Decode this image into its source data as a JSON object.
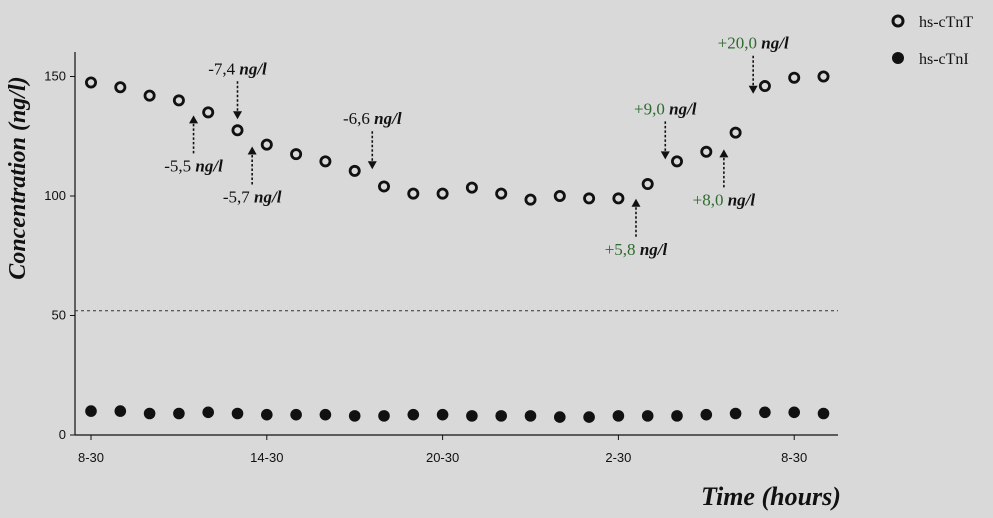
{
  "chart_data": {
    "type": "scatter",
    "xlabel": "Time (hours)",
    "ylabel": "Concentration (ng/l)",
    "ylim": [
      0,
      160
    ],
    "yticks": [
      0,
      50,
      100,
      150
    ],
    "x_tick_labels": [
      {
        "index": 0,
        "label": "8-30"
      },
      {
        "index": 6,
        "label": "14-30"
      },
      {
        "index": 12,
        "label": "20-30"
      },
      {
        "index": 18,
        "label": "2-30"
      },
      {
        "index": 24,
        "label": "8-30"
      }
    ],
    "reference_line": {
      "y": 52,
      "style": "dashed"
    },
    "legend_position": "top-right",
    "series": [
      {
        "name": "hs-cTnT",
        "marker": "open-circle",
        "values": [
          147.5,
          145.5,
          142.0,
          140.0,
          135.0,
          127.5,
          121.5,
          117.5,
          114.5,
          110.5,
          104.0,
          101.0,
          101.0,
          103.5,
          101.0,
          98.5,
          100.0,
          99.0,
          99.0,
          105.0,
          114.5,
          118.5,
          126.5,
          146.0,
          149.5,
          150.0
        ]
      },
      {
        "name": "hs-cTnI",
        "marker": "filled-circle",
        "values": [
          10.0,
          10.0,
          9.0,
          9.0,
          9.5,
          9.0,
          8.5,
          8.5,
          8.5,
          8.0,
          8.0,
          8.5,
          8.5,
          8.0,
          8.0,
          8.0,
          7.5,
          7.5,
          8.0,
          8.0,
          8.0,
          8.5,
          9.0,
          9.5,
          9.5,
          9.0
        ]
      }
    ],
    "annotations": [
      {
        "num": "-5,5",
        "unit": "ng/l",
        "color": "#111111",
        "target_index": 3.5,
        "arrow": "up"
      },
      {
        "num": "-7,4",
        "unit": "ng/l",
        "color": "#111111",
        "target_index": 5.0,
        "arrow": "down"
      },
      {
        "num": "-5,7",
        "unit": "ng/l",
        "color": "#111111",
        "target_index": 5.5,
        "arrow": "up"
      },
      {
        "num": "-6,6",
        "unit": "ng/l",
        "color": "#111111",
        "target_index": 9.6,
        "arrow": "down"
      },
      {
        "num": "+5,8",
        "unit": "ng/l",
        "color": "#2f6b2f",
        "target_index": 18.6,
        "arrow": "up"
      },
      {
        "num": "+9,0",
        "unit": "ng/l",
        "color": "#2f6b2f",
        "target_index": 19.6,
        "arrow": "down"
      },
      {
        "num": "+8,0",
        "unit": "ng/l",
        "color": "#2f6b2f",
        "target_index": 21.6,
        "arrow": "up"
      },
      {
        "num": "+20,0",
        "unit": "ng/l",
        "color": "#2f6b2f",
        "target_index": 22.6,
        "arrow": "down"
      }
    ]
  }
}
